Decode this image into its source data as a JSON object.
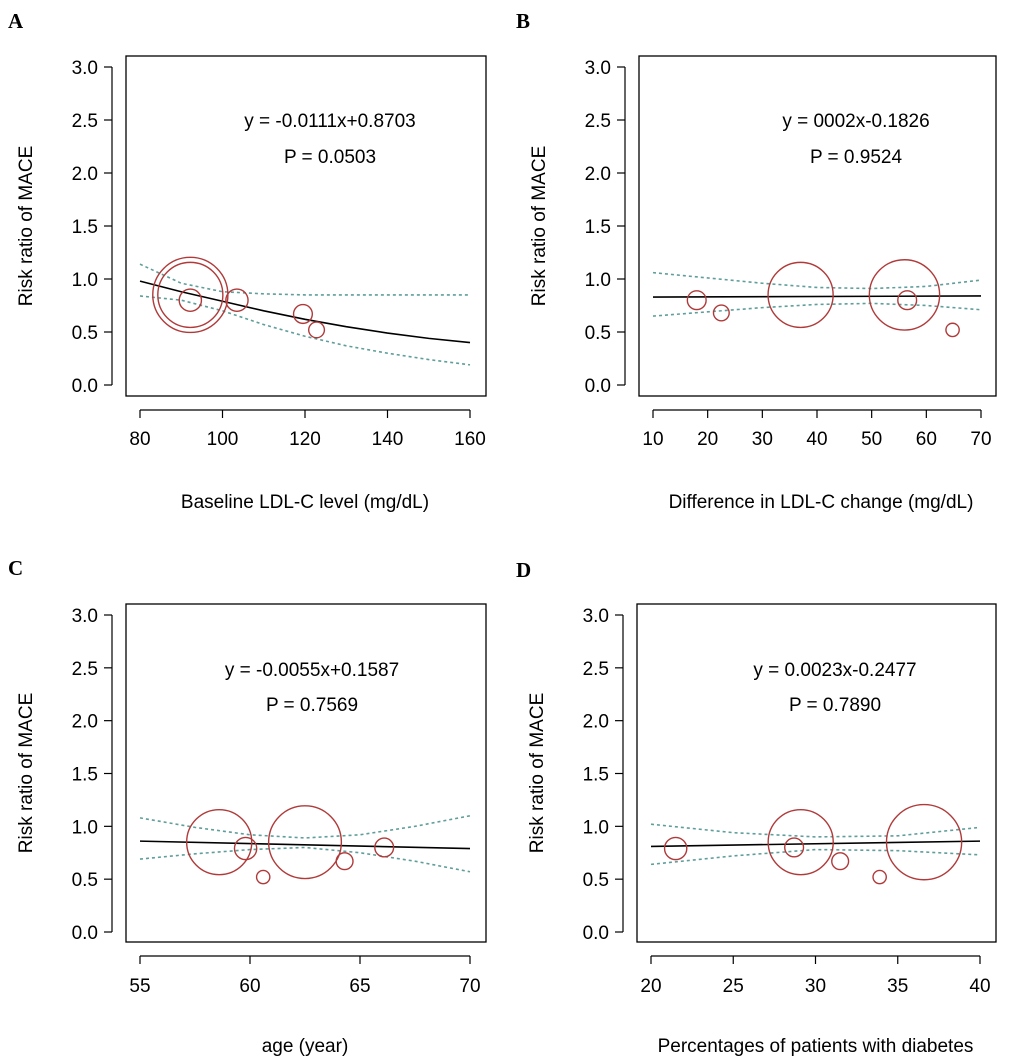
{
  "colors": {
    "bubble": "#b03a3a",
    "ci": "#5f9e9a",
    "fit": "#000000",
    "axis": "#000000"
  },
  "chart_data": [
    {
      "type": "scatter",
      "panel_label": "A",
      "xlabel": "Baseline LDL-C level (mg/dL)",
      "ylabel": "Risk ratio of MACE",
      "xlim": [
        80,
        160
      ],
      "ylim": [
        0.0,
        3.0
      ],
      "x_ticks": [
        80,
        100,
        120,
        140,
        160
      ],
      "y_ticks": [
        "0.0",
        "0.5",
        "1.0",
        "1.5",
        "2.0",
        "2.5",
        "3.0"
      ],
      "equation": "y = -0.0111x+0.8703",
      "p_value": "P = 0.0503",
      "points": [
        {
          "x": 92.2,
          "y": 0.8,
          "weight": 7.0
        },
        {
          "x": 92.2,
          "y": 0.85,
          "weight": 60
        },
        {
          "x": 92.2,
          "y": 0.85,
          "weight": 80
        },
        {
          "x": 103.5,
          "y": 0.8,
          "weight": 7.0
        },
        {
          "x": 119.5,
          "y": 0.67,
          "weight": 5.0
        },
        {
          "x": 122.8,
          "y": 0.52,
          "weight": 3.5
        }
      ],
      "fit_line": {
        "x": [
          80,
          90,
          100,
          110,
          120,
          130,
          140,
          150,
          160
        ],
        "y": [
          0.98,
          0.88,
          0.79,
          0.7,
          0.62,
          0.55,
          0.49,
          0.44,
          0.4
        ]
      },
      "ci_upper": {
        "x": [
          80,
          90,
          100,
          110,
          120,
          130,
          140,
          150,
          160
        ],
        "y": [
          1.14,
          0.96,
          0.88,
          0.86,
          0.85,
          0.85,
          0.85,
          0.85,
          0.85
        ]
      },
      "ci_lower": {
        "x": [
          80,
          90,
          100,
          110,
          120,
          130,
          140,
          150,
          160
        ],
        "y": [
          0.84,
          0.8,
          0.7,
          0.57,
          0.46,
          0.37,
          0.3,
          0.24,
          0.19
        ]
      }
    },
    {
      "type": "scatter",
      "panel_label": "B",
      "xlabel": "Difference in LDL-C change (mg/dL)",
      "ylabel": "Risk ratio of MACE",
      "xlim": [
        10,
        70
      ],
      "ylim": [
        0.0,
        3.0
      ],
      "x_ticks": [
        10,
        20,
        30,
        40,
        50,
        60,
        70
      ],
      "y_ticks": [
        "0.0",
        "0.5",
        "1.0",
        "1.5",
        "2.0",
        "2.5",
        "3.0"
      ],
      "equation": "y = 0002x-0.1826",
      "p_value": "P = 0.9524",
      "points": [
        {
          "x": 18.0,
          "y": 0.8,
          "weight": 5.0
        },
        {
          "x": 22.5,
          "y": 0.68,
          "weight": 3.5
        },
        {
          "x": 37.0,
          "y": 0.85,
          "weight": 60
        },
        {
          "x": 56.0,
          "y": 0.85,
          "weight": 70
        },
        {
          "x": 56.5,
          "y": 0.8,
          "weight": 5.0
        },
        {
          "x": 64.8,
          "y": 0.52,
          "weight": 2.5
        }
      ],
      "fit_line": {
        "x": [
          10,
          70
        ],
        "y": [
          0.83,
          0.84
        ]
      },
      "ci_upper": {
        "x": [
          10,
          20,
          30,
          40,
          50,
          60,
          70
        ],
        "y": [
          1.06,
          1.01,
          0.96,
          0.92,
          0.91,
          0.93,
          0.99
        ]
      },
      "ci_lower": {
        "x": [
          10,
          20,
          30,
          40,
          50,
          60,
          70
        ],
        "y": [
          0.65,
          0.69,
          0.73,
          0.76,
          0.77,
          0.75,
          0.71
        ]
      }
    },
    {
      "type": "scatter",
      "panel_label": "C",
      "xlabel": "age (year)",
      "ylabel": "Risk ratio of MACE",
      "xlim": [
        55,
        70
      ],
      "ylim": [
        0.0,
        3.0
      ],
      "x_ticks": [
        55,
        60,
        65,
        70
      ],
      "y_ticks": [
        "0.0",
        "0.5",
        "1.0",
        "1.5",
        "2.0",
        "2.5",
        "3.0"
      ],
      "equation": "y = -0.0055x+0.1587",
      "p_value": "P = 0.7569",
      "points": [
        {
          "x": 58.6,
          "y": 0.85,
          "weight": 60
        },
        {
          "x": 59.8,
          "y": 0.79,
          "weight": 7.0
        },
        {
          "x": 60.6,
          "y": 0.52,
          "weight": 2.5
        },
        {
          "x": 62.5,
          "y": 0.85,
          "weight": 75
        },
        {
          "x": 64.3,
          "y": 0.67,
          "weight": 4.0
        },
        {
          "x": 66.1,
          "y": 0.8,
          "weight": 5.0
        }
      ],
      "fit_line": {
        "x": [
          55,
          70
        ],
        "y": [
          0.86,
          0.79
        ]
      },
      "ci_upper": {
        "x": [
          55,
          57.5,
          60,
          62.5,
          65,
          67.5,
          70
        ],
        "y": [
          1.08,
          0.99,
          0.92,
          0.89,
          0.92,
          1.0,
          1.1
        ]
      },
      "ci_lower": {
        "x": [
          55,
          57.5,
          60,
          62.5,
          65,
          67.5,
          70
        ],
        "y": [
          0.69,
          0.74,
          0.78,
          0.8,
          0.75,
          0.67,
          0.57
        ]
      }
    },
    {
      "type": "scatter",
      "panel_label": "D",
      "xlabel": "Percentages of patients with diabetes",
      "ylabel": "Risk ratio of MACE",
      "xlim": [
        20,
        40
      ],
      "ylim": [
        0.0,
        3.0
      ],
      "x_ticks": [
        20,
        25,
        30,
        35,
        40
      ],
      "y_ticks": [
        "0.0",
        "0.5",
        "1.0",
        "1.5",
        "2.0",
        "2.5",
        "3.0"
      ],
      "equation": "y = 0.0023x-0.2477",
      "p_value": "P = 0.7890",
      "points": [
        {
          "x": 21.5,
          "y": 0.79,
          "weight": 7.0
        },
        {
          "x": 28.7,
          "y": 0.8,
          "weight": 5.0
        },
        {
          "x": 29.1,
          "y": 0.85,
          "weight": 60
        },
        {
          "x": 31.5,
          "y": 0.67,
          "weight": 4.0
        },
        {
          "x": 33.9,
          "y": 0.52,
          "weight": 2.5
        },
        {
          "x": 36.6,
          "y": 0.85,
          "weight": 80
        }
      ],
      "fit_line": {
        "x": [
          20,
          40
        ],
        "y": [
          0.81,
          0.86
        ]
      },
      "ci_upper": {
        "x": [
          20,
          25,
          30,
          35,
          40
        ],
        "y": [
          1.02,
          0.94,
          0.9,
          0.91,
          0.99
        ]
      },
      "ci_lower": {
        "x": [
          20,
          25,
          30,
          35,
          40
        ],
        "y": [
          0.64,
          0.72,
          0.78,
          0.77,
          0.73
        ]
      }
    }
  ]
}
